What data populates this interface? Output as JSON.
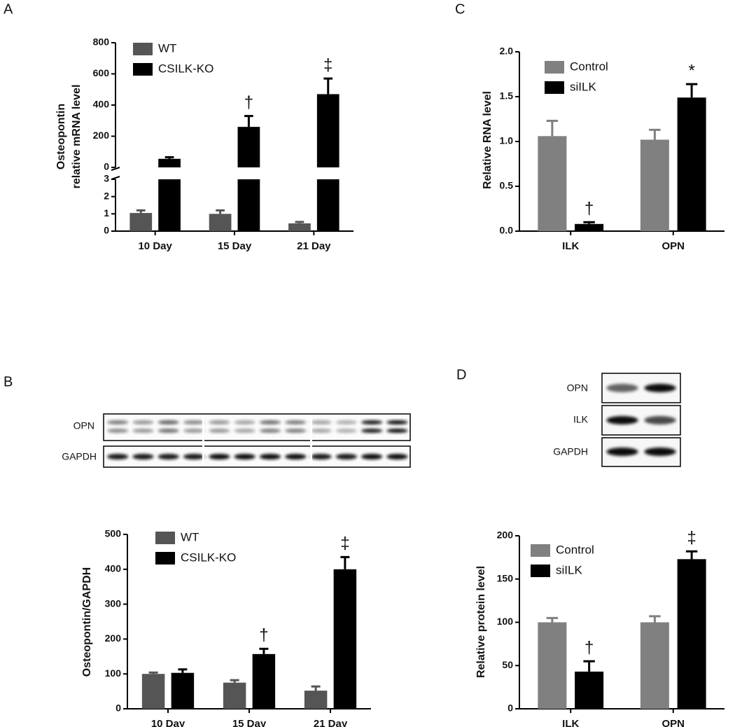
{
  "panel_labels": [
    "A",
    "B",
    "C",
    "D"
  ],
  "blots": [
    {
      "labels": [
        "OPN",
        "GAPDH"
      ]
    },
    {
      "labels": [
        "OPN",
        "ILK",
        "GAPDH"
      ]
    }
  ],
  "chart_data": [
    {
      "type": "bar",
      "ylabel": [
        "Osteopontin",
        "relative mRNA level"
      ],
      "categories": [
        "10 Day",
        "15 Day",
        "21 Day"
      ],
      "segments": [
        {
          "ylim": [
            0,
            3
          ],
          "yticks": [
            0,
            1,
            2,
            3
          ]
        },
        {
          "ylim": [
            0,
            800
          ],
          "yticks": [
            0,
            200,
            400,
            600,
            800
          ]
        }
      ],
      "series": [
        {
          "name": "WT",
          "color": "#555555",
          "values": [
            1.05,
            1.0,
            0.45
          ],
          "errors": [
            0.15,
            0.2,
            0.08
          ],
          "annotations": [
            null,
            null,
            null
          ]
        },
        {
          "name": "CSILK-KO",
          "color": "#000000",
          "values": [
            55,
            260,
            470
          ],
          "errors": [
            10,
            70,
            100
          ],
          "annotations": [
            null,
            "†",
            "‡"
          ]
        }
      ]
    },
    {
      "type": "bar",
      "ylabel": [
        "Osteopontin/GAPDH"
      ],
      "categories": [
        "10 Day",
        "15 Day",
        "21 Day"
      ],
      "ylim": [
        0,
        500
      ],
      "yticks": [
        0,
        100,
        200,
        300,
        400,
        500
      ],
      "series": [
        {
          "name": "WT",
          "color": "#555555",
          "values": [
            100,
            75,
            52
          ],
          "errors": [
            4,
            7,
            12
          ],
          "annotations": [
            null,
            null,
            null
          ]
        },
        {
          "name": "CSILK-KO",
          "color": "#000000",
          "values": [
            103,
            157,
            400
          ],
          "errors": [
            10,
            15,
            35
          ],
          "annotations": [
            null,
            "†",
            "‡"
          ]
        }
      ]
    },
    {
      "type": "bar",
      "ylabel": [
        "Relative RNA level"
      ],
      "categories": [
        "ILK",
        "OPN"
      ],
      "ylim": [
        0,
        2
      ],
      "yticks": [
        {
          "value": 0,
          "label": "0.0"
        },
        0.5,
        {
          "value": 1,
          "label": "1.0"
        },
        1.5,
        {
          "value": 2,
          "label": "2.0"
        }
      ],
      "series": [
        {
          "name": "Control",
          "color": "#808080",
          "values": [
            1.06,
            1.02
          ],
          "errors": [
            0.17,
            0.11
          ],
          "annotations": [
            null,
            null
          ]
        },
        {
          "name": "siILK",
          "color": "#000000",
          "values": [
            0.08,
            1.49
          ],
          "errors": [
            0.02,
            0.15
          ],
          "annotations": [
            "†",
            "*"
          ]
        }
      ]
    },
    {
      "type": "bar",
      "ylabel": [
        "Relative protein level"
      ],
      "categories": [
        "ILK",
        "OPN"
      ],
      "ylim": [
        0,
        200
      ],
      "yticks": [
        0,
        50,
        100,
        150,
        200
      ],
      "series": [
        {
          "name": "Control",
          "color": "#808080",
          "values": [
            100,
            100
          ],
          "errors": [
            5,
            7
          ],
          "annotations": [
            null,
            null
          ]
        },
        {
          "name": "siILK",
          "color": "#000000",
          "values": [
            43,
            173
          ],
          "errors": [
            12,
            9
          ],
          "annotations": [
            "†",
            "‡"
          ]
        }
      ]
    }
  ]
}
